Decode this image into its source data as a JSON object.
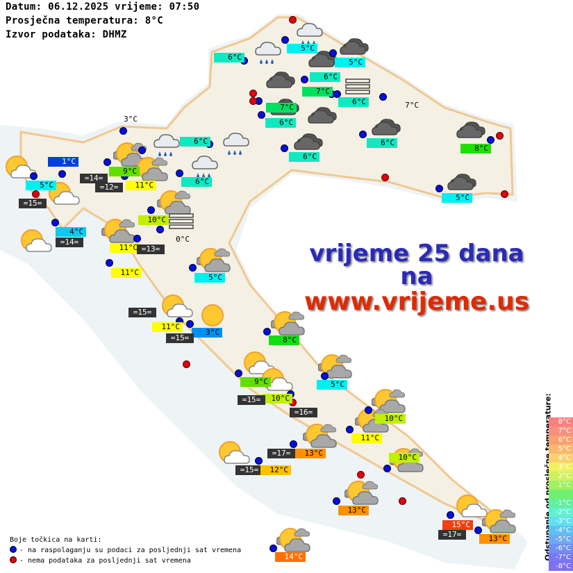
{
  "header": {
    "date_line": "Datum: 06.12.2025 vrijeme: 07:50",
    "avg_line": "Prosječna temperatura: 8°C",
    "source_line": "Izvor podataka: DHMZ"
  },
  "promo": {
    "line1": "vrijeme 25 dana",
    "line2": "na",
    "line3": "www.vrijeme.us"
  },
  "colors": {
    "dot_available": "#0010e0",
    "dot_missing": "#e00010",
    "promo_blue": "#2a2ab8",
    "promo_red": "#e02a00",
    "sea_temp_bg": "#333333"
  },
  "labels": [
    {
      "text": "6°C",
      "bg": "#10e8c0"
    },
    {
      "text": "5°C",
      "bg": "#00f0f0"
    },
    {
      "text": "5°C",
      "bg": "#00f0f0"
    },
    {
      "text": "6°C",
      "bg": "#10e8c0"
    },
    {
      "text": "7°C",
      "bg": "#00e060"
    },
    {
      "text": "6°C",
      "bg": "#10e8c0"
    },
    {
      "text": "7°C",
      "bg": ""
    },
    {
      "text": "7°C",
      "bg": "#00e060"
    },
    {
      "text": "6°C",
      "bg": "#10e8c0"
    },
    {
      "text": "6°C",
      "bg": "#10e8c0"
    },
    {
      "text": "6°C",
      "bg": "#10e8c0"
    },
    {
      "text": "8°C",
      "bg": "#20e000"
    },
    {
      "text": "5°C",
      "bg": "#00f0f0"
    },
    {
      "text": "6°C",
      "bg": "#10e8c0"
    },
    {
      "text": "6°C",
      "bg": "#10e8c0"
    },
    {
      "text": "3°C",
      "bg": ""
    },
    {
      "text": "1°C",
      "bg": "#0040e0",
      "fg": "#ffffff"
    },
    {
      "text": "5°C",
      "bg": "#00f0f0"
    },
    {
      "text": "=15=",
      "bg": "dev"
    },
    {
      "text": "=14=",
      "bg": "dev"
    },
    {
      "text": "=12=",
      "bg": "dev"
    },
    {
      "text": "9°C",
      "bg": "#60e000"
    },
    {
      "text": "11°C",
      "bg": "#ffff00"
    },
    {
      "text": "4°C",
      "bg": "#10c8f0"
    },
    {
      "text": "=14=",
      "bg": "dev"
    },
    {
      "text": "10°C",
      "bg": "#c0f000"
    },
    {
      "text": "0°C",
      "bg": ""
    },
    {
      "text": "11°C",
      "bg": "#ffff00"
    },
    {
      "text": "=13=",
      "bg": "dev"
    },
    {
      "text": "11°C",
      "bg": "#ffff00"
    },
    {
      "text": "5°C",
      "bg": "#00f0f0"
    },
    {
      "text": "=15=",
      "bg": "dev"
    },
    {
      "text": "11°C",
      "bg": "#ffff00"
    },
    {
      "text": "3°C",
      "bg": "#0090f0"
    },
    {
      "text": "=15=",
      "bg": "dev"
    },
    {
      "text": "8°C",
      "bg": "#10e010"
    },
    {
      "text": "9°C",
      "bg": "#60e000"
    },
    {
      "text": "5°C",
      "bg": "#00f0f0"
    },
    {
      "text": "10°C",
      "bg": "#c0f000"
    },
    {
      "text": "=15=",
      "bg": "dev"
    },
    {
      "text": "=16=",
      "bg": "dev"
    },
    {
      "text": "10°C",
      "bg": "#c0f000"
    },
    {
      "text": "11°C",
      "bg": "#ffff00"
    },
    {
      "text": "=17=",
      "bg": "dev"
    },
    {
      "text": "13°C",
      "bg": "#ff9000"
    },
    {
      "text": "=15=",
      "bg": "dev"
    },
    {
      "text": "12°C",
      "bg": "#ffc000"
    },
    {
      "text": "10°C",
      "bg": "#c0f000"
    },
    {
      "text": "13°C",
      "bg": "#ff9000"
    },
    {
      "text": "15°C",
      "bg": "#f04010",
      "fg": "#ffffff"
    },
    {
      "text": "=17=",
      "bg": "dev"
    },
    {
      "text": "13°C",
      "bg": "#ff9000"
    },
    {
      "text": "14°C",
      "bg": "#ff7000",
      "fg": "#ffffff"
    }
  ],
  "icons": [
    "rain-cloud",
    "rain-cloud",
    "dark-cloud",
    "dark-cloud",
    "dark-cloud",
    "fog",
    "dark-cloud",
    "dark-cloud",
    "dark-cloud",
    "dark-cloud",
    "dark-cloud",
    "dark-cloud",
    "rain-cloud",
    "rain-cloud",
    "rain-cloud",
    "sun-cloud-grey",
    "sun-cloud-grey",
    "sun-cloud",
    "sun-cloud",
    "sun-cloud-grey",
    "fog",
    "sun-cloud-grey",
    "sun-cloud",
    "sun-cloud-grey",
    "sun-cloud",
    "sun",
    "sun-cloud-grey",
    "sun-cloud",
    "sun-cloud-grey",
    "sun-cloud",
    "sun-cloud-grey",
    "sun-cloud-grey",
    "sun-cloud-grey",
    "sun-cloud",
    "sun-cloud-grey",
    "sun-cloud-grey",
    "sun-cloud",
    "sun-cloud-grey",
    "sun-cloud-grey"
  ],
  "dots": {
    "available_count_note": null
  },
  "scale": {
    "title": "Odstupanje od prosječne temperature:",
    "rows": [
      {
        "text": "8°C",
        "color": "#f88080"
      },
      {
        "text": "7°C",
        "color": "#f89080"
      },
      {
        "text": "6°C",
        "color": "#f8a070"
      },
      {
        "text": "5°C",
        "color": "#f8b870"
      },
      {
        "text": "4°C",
        "color": "#f8d070"
      },
      {
        "text": "3°C",
        "color": "#f0f060"
      },
      {
        "text": "2°C",
        "color": "#d0f060"
      },
      {
        "text": "1°C",
        "color": "#a0f060"
      },
      {
        "text": "",
        "color": "#70f070"
      },
      {
        "text": "-1°C",
        "color": "#60f0a0"
      },
      {
        "text": "-2°C",
        "color": "#60f0d0"
      },
      {
        "text": "-3°C",
        "color": "#60e0f0"
      },
      {
        "text": "-4°C",
        "color": "#60c0f0"
      },
      {
        "text": "-5°C",
        "color": "#70a8f0"
      },
      {
        "text": "-6°C",
        "color": "#7090f0"
      },
      {
        "text": "-7°C",
        "color": "#7878f0"
      },
      {
        "text": "-8°C",
        "color": "#8070f0"
      }
    ]
  },
  "dot_legend": {
    "title": "Boje točkica na karti:",
    "available": "- na raspolaganju su podaci za posljednji sat vremena",
    "missing": "- nema podataka za posljednji sat vremena"
  }
}
